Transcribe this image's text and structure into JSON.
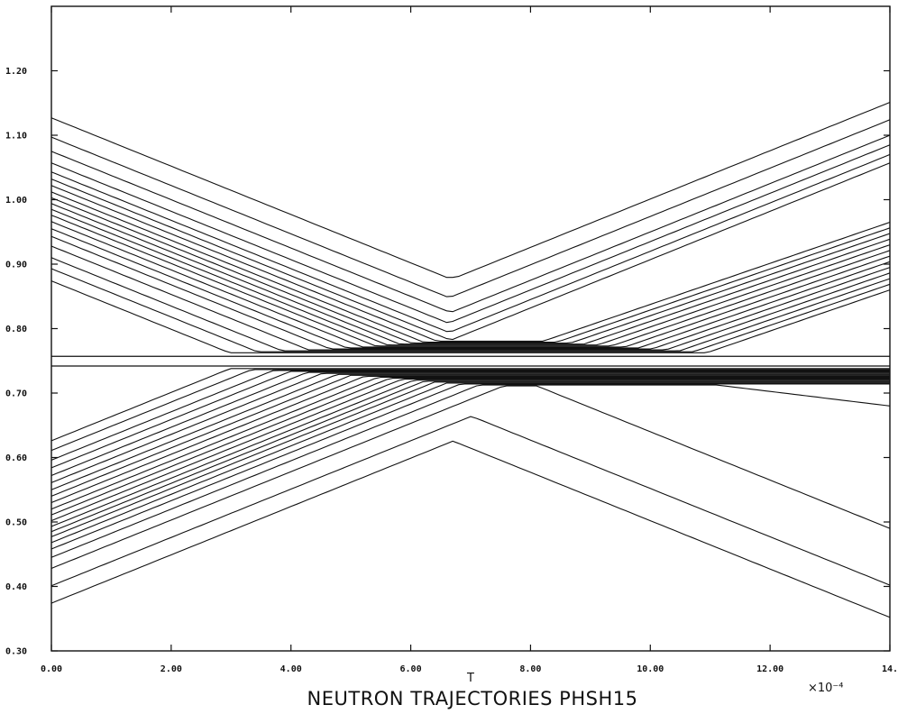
{
  "chart_data": {
    "type": "line",
    "title": "NEUTRON TRAJECTORIES PHSH15",
    "xlabel": "T",
    "x_multiplier": "×10⁻⁴",
    "xlim": [
      0,
      14
    ],
    "ylim": [
      0.3,
      1.3
    ],
    "x_tick_labels": [
      "0.00",
      "2.00",
      "4.00",
      "6.00",
      "8.00",
      "10.00",
      "12.00",
      "14."
    ],
    "y_tick_labels": [
      "0.30",
      "0.40",
      "0.50",
      "0.60",
      "0.70",
      "0.80",
      "0.90",
      "1.00",
      "1.10",
      "1.20"
    ],
    "grid": false,
    "reference_lines_y": [
      0.757,
      0.742
    ],
    "upper_start_y": [
      1.127,
      1.097,
      1.075,
      1.057,
      1.043,
      1.032,
      1.022,
      1.012,
      1.003,
      0.994,
      0.985,
      0.976,
      0.966,
      0.955,
      0.943,
      0.928,
      0.91,
      0.893,
      0.874
    ],
    "lower_start_y": [
      0.626,
      0.611,
      0.596,
      0.584,
      0.572,
      0.561,
      0.55,
      0.54,
      0.53,
      0.52,
      0.511,
      0.502,
      0.493,
      0.485,
      0.477,
      0.468,
      0.458,
      0.445,
      0.428,
      0.401,
      0.374
    ],
    "slope_per_unit_T": 0.0375,
    "upper_turning_T_first": 7.3,
    "lower_turning_T_first": 7.5,
    "capture_y_range": [
      0.742,
      0.757
    ],
    "upper_end_y_escaped": [
      1.151,
      1.124,
      1.1,
      1.085,
      1.07,
      1.057
    ],
    "lower_end_y_escaped": [
      0.68,
      0.49,
      0.402,
      0.352
    ],
    "converging_end_y_range": [
      0.86,
      0.965
    ]
  }
}
